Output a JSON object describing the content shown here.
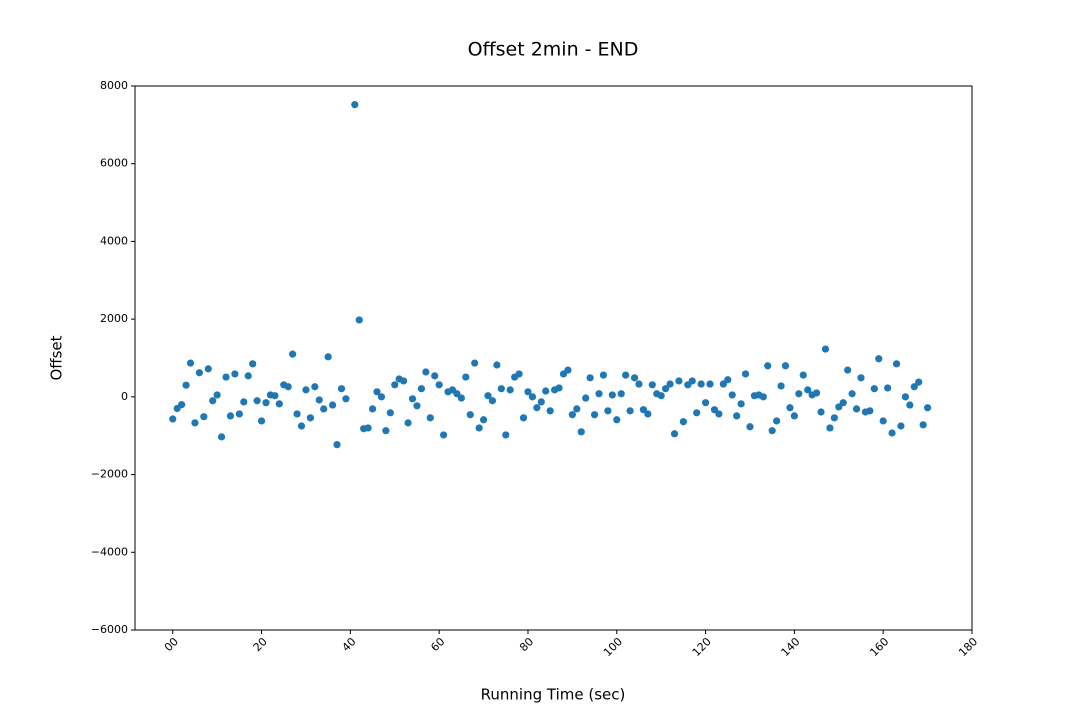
{
  "chart_data": {
    "type": "scatter",
    "title": "Offset 2min - END",
    "xlabel": "Running Time (sec)",
    "ylabel": "Offset",
    "x": [
      0,
      1,
      2,
      3,
      4,
      5,
      6,
      7,
      8,
      9,
      10,
      11,
      12,
      13,
      14,
      15,
      16,
      17,
      18,
      19,
      20,
      21,
      22,
      23,
      24,
      25,
      26,
      27,
      28,
      29,
      30,
      31,
      32,
      33,
      34,
      35,
      36,
      37,
      38,
      39,
      40,
      41,
      42,
      43,
      44,
      45,
      46,
      47,
      48,
      49,
      50,
      51,
      52,
      53,
      54,
      55,
      56,
      57,
      58,
      59,
      60,
      61,
      62,
      63,
      64,
      65,
      66,
      67,
      68,
      69,
      70,
      71,
      72,
      73,
      74,
      75,
      76,
      77,
      78,
      79,
      80,
      81,
      82,
      83,
      84,
      85,
      86,
      87,
      88,
      89,
      90,
      91,
      92,
      93,
      94,
      95,
      96,
      97,
      98,
      99,
      100,
      101,
      102,
      103,
      104,
      105,
      106,
      107,
      108,
      109,
      110,
      111,
      112,
      113,
      114,
      115,
      116,
      117,
      118,
      119,
      120,
      121,
      122,
      123,
      124,
      125,
      126,
      127,
      128,
      129,
      130,
      131,
      132,
      133,
      134,
      135,
      136,
      137,
      138,
      139,
      140,
      141,
      142,
      143,
      144,
      145,
      146,
      147,
      148,
      149,
      150,
      151,
      152,
      153,
      154,
      155,
      156,
      157,
      158,
      159,
      160,
      161,
      162,
      163,
      164,
      165,
      166,
      167,
      168,
      169,
      170
    ],
    "values": [
      -570,
      -300,
      -200,
      300,
      870,
      -670,
      620,
      -510,
      720,
      -100,
      50,
      -1030,
      510,
      -490,
      590,
      -440,
      -130,
      540,
      850,
      -100,
      -620,
      -150,
      50,
      30,
      -180,
      310,
      260,
      1100,
      -440,
      -750,
      180,
      -540,
      260,
      -80,
      -310,
      1030,
      -210,
      -1230,
      210,
      -50,
      null,
      7520,
      1980,
      -820,
      -800,
      -310,
      130,
      0,
      -870,
      -410,
      310,
      460,
      410,
      -670,
      -50,
      -230,
      210,
      640,
      -540,
      540,
      310,
      -980,
      130,
      180,
      80,
      -30,
      510,
      -460,
      870,
      -800,
      -590,
      30,
      -100,
      820,
      210,
      -980,
      180,
      510,
      590,
      -540,
      130,
      0,
      -280,
      -130,
      150,
      -360,
      180,
      230,
      590,
      690,
      -460,
      -310,
      -900,
      -30,
      490,
      -460,
      80,
      560,
      -360,
      50,
      -590,
      80,
      560,
      -360,
      490,
      330,
      -330,
      -440,
      310,
      80,
      30,
      210,
      330,
      -950,
      410,
      -640,
      310,
      410,
      -410,
      330,
      -150,
      330,
      -330,
      -440,
      330,
      440,
      50,
      -490,
      -180,
      590,
      -770,
      30,
      50,
      0,
      800,
      -870,
      -620,
      280,
      800,
      -280,
      -490,
      80,
      560,
      180,
      50,
      100,
      -390,
      1230,
      -800,
      -540,
      -260,
      -150,
      690,
      80,
      -310,
      490,
      -390,
      -360,
      210,
      980,
      -620,
      230,
      -930,
      850,
      -750,
      0,
      -210,
      260,
      380,
      -720,
      -280
    ],
    "color": "#1f77b4",
    "xlim": [
      -8.5,
      180
    ],
    "xticks": [
      {
        "value": 0,
        "label": "00"
      },
      20,
      40,
      60,
      80,
      100,
      120,
      140,
      160,
      180
    ],
    "ylim": [
      -6000,
      8000
    ],
    "yticks": [
      {
        "value": -6000,
        "label": "−6000"
      },
      {
        "value": -4000,
        "label": "−4000"
      },
      {
        "value": -2000,
        "label": "−2000"
      },
      0,
      2000,
      4000,
      6000,
      8000
    ]
  }
}
